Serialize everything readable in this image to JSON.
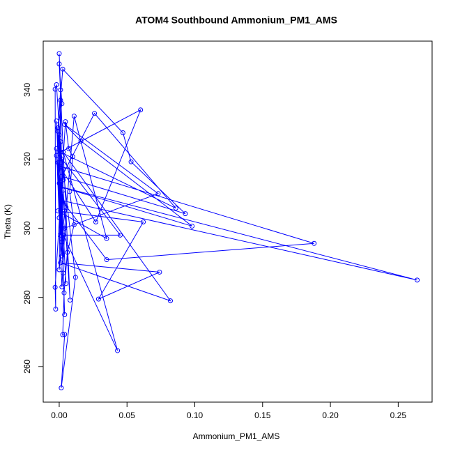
{
  "chart_data": {
    "type": "line",
    "title": "ATOM4 Southbound Ammonium_PM1_AMS",
    "x_label": "Ammonium_PM1_AMS",
    "y_label": "Theta (K)",
    "color": "#0000ff",
    "markers": true,
    "x": [
      0.0,
      0.001,
      -0.001,
      0.0026,
      0.047,
      0.053,
      0.093,
      0.002,
      0.026,
      0.086,
      0.001,
      0.06,
      0.027,
      0.0,
      0.188,
      0.035,
      0.002,
      0.264,
      0.001,
      0.098,
      0.016,
      0.004,
      0.073,
      0.004,
      0.011,
      0.035,
      -0.001,
      0.062,
      0.029,
      0.074,
      0.001,
      0.082,
      0.003,
      0.043,
      0.003,
      0.045,
      0.002,
      0.012,
      0.0015,
      0.004,
      0.0026,
      0.0036,
      0.006,
      0.011,
      0.0077,
      0.01,
      0.007,
      0.0046,
      -0.003,
      -0.0026,
      -0.003,
      -0.002,
      0.008,
      0.0,
      0.002,
      -0.001,
      0.003,
      0.001,
      0.0,
      0.004,
      -0.002,
      0.002,
      0.001,
      0.005,
      -0.001,
      0.0,
      0.003,
      0.002,
      -0.002,
      0.001,
      0.004,
      0.0,
      0.002,
      -0.001,
      0.003,
      0.001,
      0.0,
      0.005,
      0.002,
      -0.002,
      0.001,
      0.003
    ],
    "values": [
      350.5,
      340,
      328,
      346,
      327.6,
      319.2,
      304.2,
      315,
      333.2,
      305.8,
      322,
      334.2,
      301.8,
      318,
      295.6,
      290.9,
      308,
      285,
      312,
      300.6,
      325.2,
      330,
      310,
      300,
      332.4,
      297,
      305,
      301.8,
      279.5,
      287.3,
      290,
      279,
      322,
      264.6,
      298,
      298,
      320,
      285.8,
      253.8,
      269.3,
      269.2,
      281.3,
      293,
      301,
      310.6,
      320.7,
      323,
      330.8,
      282.9,
      276.6,
      340.2,
      341.5,
      279.2,
      347.5,
      336,
      329,
      314,
      325,
      288,
      305,
      321,
      296,
      312,
      284,
      329,
      303,
      317,
      292,
      331,
      309,
      275,
      327,
      300,
      319,
      287,
      337,
      313,
      306,
      283,
      323,
      298,
      311
    ],
    "xlim": [
      -0.0118,
      0.275
    ],
    "ylim": [
      249.7,
      354.1
    ],
    "xticks": [
      {
        "value": 0,
        "label": "0.00"
      },
      {
        "value": 0.05,
        "label": "0.05"
      },
      {
        "value": 0.1,
        "label": "0.10"
      },
      {
        "value": 0.15,
        "label": "0.15"
      },
      {
        "value": 0.2,
        "label": "0.20"
      },
      {
        "value": 0.25,
        "label": "0.25"
      }
    ],
    "yticks": [
      260,
      280,
      300,
      320,
      340
    ]
  }
}
